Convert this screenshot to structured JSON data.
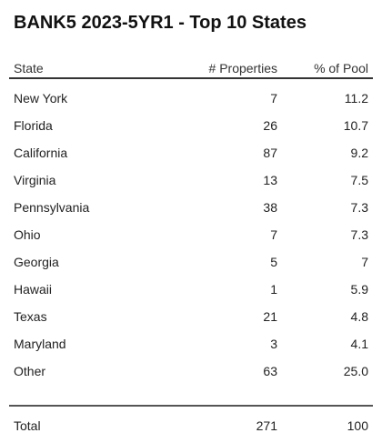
{
  "chart_data": {
    "type": "table",
    "title": "BANK5 2023-5YR1 - Top 10 States",
    "columns": [
      "State",
      "# Properties",
      "% of Pool"
    ],
    "rows": [
      {
        "state": "New York",
        "properties": "7",
        "pool": "11.2"
      },
      {
        "state": "Florida",
        "properties": "26",
        "pool": "10.7"
      },
      {
        "state": "California",
        "properties": "87",
        "pool": "9.2"
      },
      {
        "state": "Virginia",
        "properties": "13",
        "pool": "7.5"
      },
      {
        "state": "Pennsylvania",
        "properties": "38",
        "pool": "7.3"
      },
      {
        "state": "Ohio",
        "properties": "7",
        "pool": "7.3"
      },
      {
        "state": "Georgia",
        "properties": "5",
        "pool": "7"
      },
      {
        "state": "Hawaii",
        "properties": "1",
        "pool": "5.9"
      },
      {
        "state": "Texas",
        "properties": "21",
        "pool": "4.8"
      },
      {
        "state": "Maryland",
        "properties": "3",
        "pool": "4.1"
      },
      {
        "state": "Other",
        "properties": "63",
        "pool": "25.0"
      }
    ],
    "total": {
      "label": "Total",
      "properties": "271",
      "pool": "100"
    }
  }
}
